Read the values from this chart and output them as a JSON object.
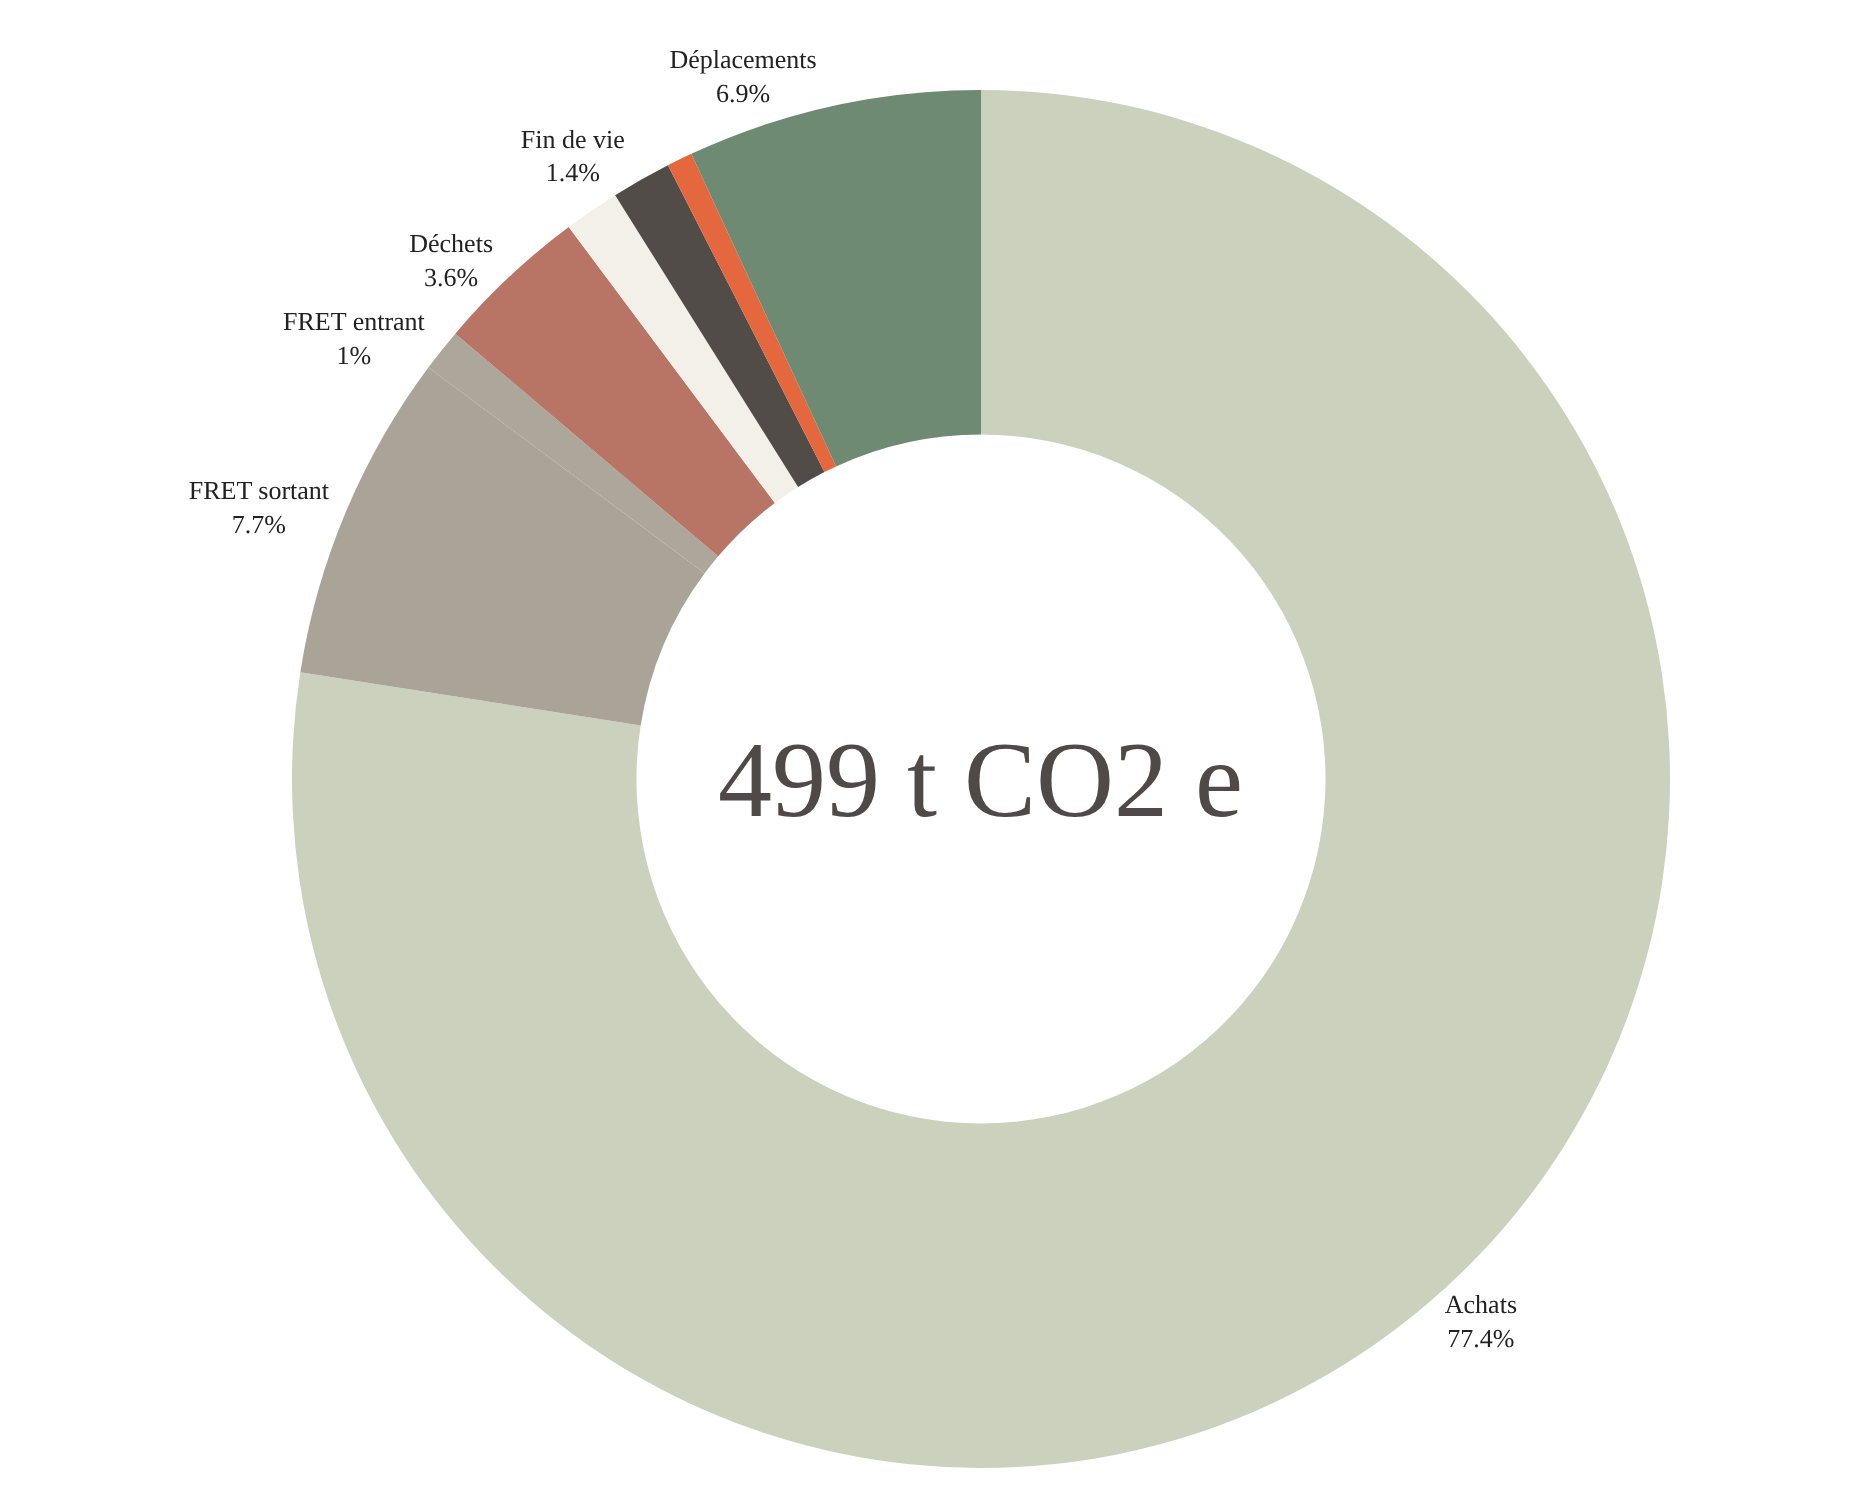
{
  "chart_data": {
    "type": "donut",
    "categories": [
      "Achats",
      "FRET sortant",
      "FRET entrant",
      "Déchets",
      null,
      "Fin de vie",
      null,
      "Déplacements"
    ],
    "values": [
      77.4,
      7.7,
      1,
      3.6,
      1.3,
      1.4,
      0.6,
      6.9
    ],
    "value_labels": [
      "77.4%",
      "7.7%",
      "1%",
      "3.6%",
      null,
      "1.4%",
      null,
      "6.9%"
    ],
    "colors": [
      "#ccd1bd",
      "#aaa398",
      "#ada69b",
      "#b87566",
      "#f3f0ea",
      "#524c49",
      "#e4673e",
      "#6f8a72"
    ],
    "annotations": [
      "499 t CO2 e"
    ],
    "legend": false
  }
}
